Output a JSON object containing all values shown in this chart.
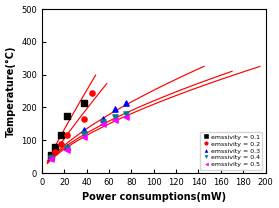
{
  "title": "",
  "xlabel": "Power consumptions(mW)",
  "ylabel": "Temperature(°C)",
  "xlim": [
    0,
    200
  ],
  "ylim": [
    0,
    500
  ],
  "xticks": [
    0,
    20,
    40,
    60,
    80,
    100,
    120,
    140,
    160,
    180,
    200
  ],
  "yticks": [
    0,
    100,
    200,
    300,
    400,
    500
  ],
  "series": [
    {
      "label": "emssivity = 0.1",
      "marker": "s",
      "color": "black",
      "data_x": [
        8,
        12,
        17,
        22,
        38
      ],
      "data_y": [
        55,
        80,
        115,
        175,
        215
      ],
      "fit_x_start": 5,
      "fit_x_end": 48
    },
    {
      "label": "emssivity = 0.2",
      "marker": "o",
      "color": "red",
      "data_x": [
        8,
        12,
        17,
        22,
        38,
        45
      ],
      "data_y": [
        48,
        65,
        90,
        115,
        165,
        245
      ],
      "fit_x_start": 5,
      "fit_x_end": 58
    },
    {
      "label": "emssivity = 0.3",
      "marker": "^",
      "color": "blue",
      "data_x": [
        8,
        22,
        38,
        55,
        65,
        75
      ],
      "data_y": [
        48,
        80,
        130,
        165,
        195,
        215
      ],
      "fit_x_start": 5,
      "fit_x_end": 145
    },
    {
      "label": "emssivity = 0.4",
      "marker": "v",
      "color": "#008080",
      "data_x": [
        8,
        22,
        38,
        55,
        65,
        75
      ],
      "data_y": [
        45,
        75,
        120,
        155,
        170,
        180
      ],
      "fit_x_start": 5,
      "fit_x_end": 170
    },
    {
      "label": "emssivity = 0.5",
      "marker": "<",
      "color": "magenta",
      "data_x": [
        8,
        22,
        38,
        55,
        65,
        75
      ],
      "data_y": [
        42,
        70,
        110,
        148,
        162,
        172
      ],
      "fit_x_start": 5,
      "fit_x_end": 195
    }
  ],
  "fit_color": "red",
  "background_color": "#ffffff",
  "legend_fontsize": 4.5,
  "xlabel_fontsize": 7,
  "ylabel_fontsize": 7,
  "tick_fontsize": 6
}
